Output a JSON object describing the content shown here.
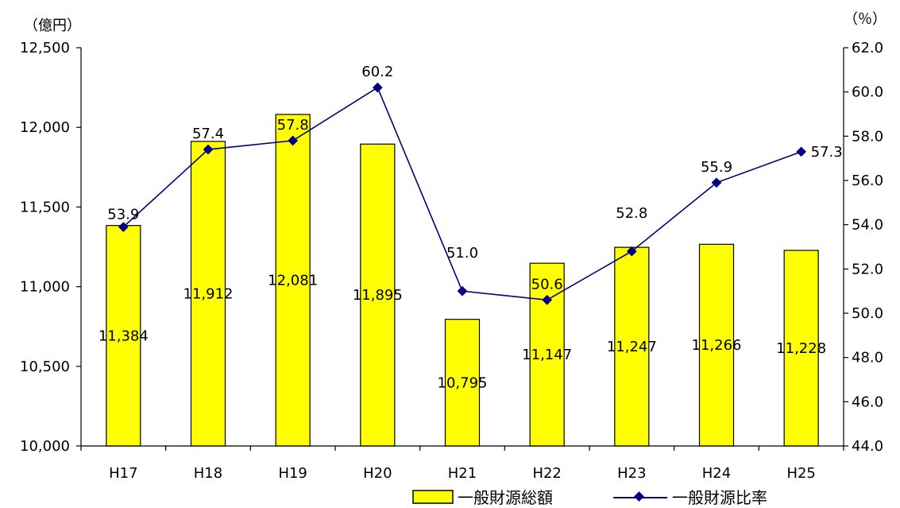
{
  "chart_data": {
    "type": "bar+line",
    "categories": [
      "H17",
      "H18",
      "H19",
      "H20",
      "H21",
      "H22",
      "H23",
      "H24",
      "H25"
    ],
    "bar_series": {
      "name": "一般財源総額",
      "values": [
        11384,
        11912,
        12081,
        11895,
        10795,
        11147,
        11247,
        11266,
        11228
      ],
      "labels": [
        "11,384",
        "11,912",
        "12,081",
        "11,895",
        "10,795",
        "11,147",
        "11,247",
        "11,266",
        "11,228"
      ],
      "color": "#ffff00",
      "border_color": "#000000"
    },
    "line_series": {
      "name": "一般財源比率",
      "values": [
        53.9,
        57.4,
        57.8,
        60.2,
        51.0,
        50.6,
        52.8,
        55.9,
        57.3
      ],
      "labels": [
        "53.9",
        "57.4",
        "57.8",
        "60.2",
        "51.0",
        "50.6",
        "52.8",
        "55.9",
        "57.3"
      ],
      "color": "#000080"
    },
    "y_left": {
      "unit": "（億円）",
      "range": [
        10000,
        12500
      ],
      "ticks": [
        10000,
        10500,
        11000,
        11500,
        12000,
        12500
      ],
      "tick_labels": [
        "10,000",
        "10,500",
        "11,000",
        "11,500",
        "12,000",
        "12,500"
      ]
    },
    "y_right": {
      "unit": "（％）",
      "range": [
        44.0,
        62.0
      ],
      "ticks": [
        44.0,
        46.0,
        48.0,
        50.0,
        52.0,
        54.0,
        56.0,
        58.0,
        60.0,
        62.0
      ],
      "tick_labels": [
        "44.0",
        "46.0",
        "48.0",
        "50.0",
        "52.0",
        "54.0",
        "56.0",
        "58.0",
        "60.0",
        "62.0"
      ]
    },
    "grid": false,
    "legend_position": "bottom-right"
  }
}
